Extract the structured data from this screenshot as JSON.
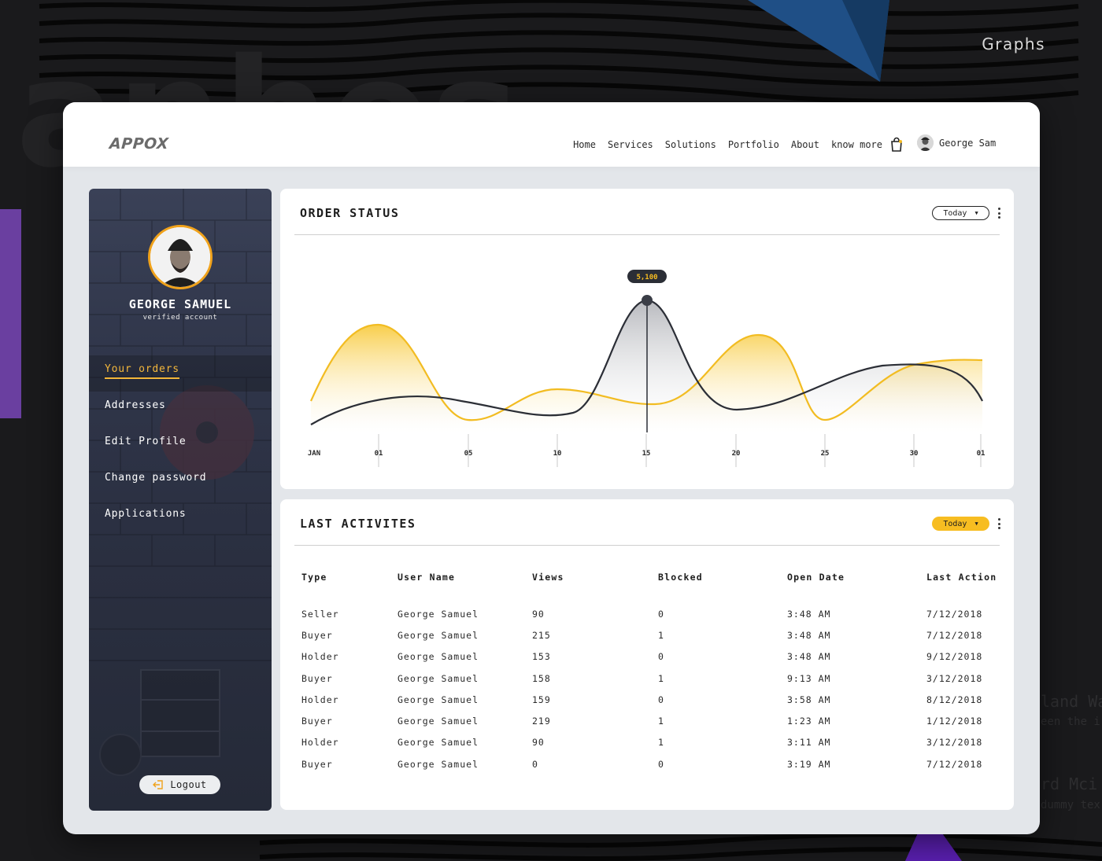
{
  "backdrop": {
    "label": "Graphs",
    "ghost_line_1": "land Wa",
    "ghost_line_2": "een the i",
    "ghost_line_3": "rd Mci",
    "ghost_line_4": "dummy tex"
  },
  "header": {
    "logo": "APPOX",
    "nav": [
      "Home",
      "Services",
      "Solutions",
      "Portfolio",
      "About",
      "know more"
    ],
    "user_name": "George Sam"
  },
  "sidebar": {
    "name": "GEORGE SAMUEL",
    "subtitle": "verified account",
    "items": [
      {
        "label": "Your orders",
        "active": true
      },
      {
        "label": "Addresses",
        "active": false
      },
      {
        "label": "Edit Profile",
        "active": false
      },
      {
        "label": "Change password",
        "active": false
      },
      {
        "label": "Applications",
        "active": false
      }
    ],
    "logout_label": "Logout"
  },
  "order_status": {
    "title": "ORDER STATUS",
    "filter_label": "Today",
    "tooltip_value": "5,100"
  },
  "chart_data": {
    "type": "area",
    "title": "ORDER STATUS",
    "x_ticks": [
      "JAN",
      "01",
      "05",
      "10",
      "15",
      "20",
      "25",
      "30",
      "01"
    ],
    "highlight": {
      "x": "15",
      "label": "5,100"
    },
    "series": [
      {
        "color": "#f2bc22",
        "fill": "yellow-gradient"
      },
      {
        "color": "#2b2e36",
        "fill": "gray-gradient"
      }
    ],
    "grid": "vertical"
  },
  "last_activities": {
    "title": "LAST ACTIVITES",
    "filter_label": "Today",
    "columns": [
      "Type",
      "User Name",
      "Views",
      "Blocked",
      "Open Date",
      "Last Action"
    ],
    "rows": [
      [
        "Seller",
        "George Samuel",
        "90",
        "0",
        "3:48 AM",
        "7/12/2018"
      ],
      [
        "Buyer",
        "George Samuel",
        "215",
        "1",
        "3:48 AM",
        "7/12/2018"
      ],
      [
        "Holder",
        "George Samuel",
        "153",
        "0",
        "3:48 AM",
        "9/12/2018"
      ],
      [
        "Buyer",
        "George Samuel",
        "158",
        "1",
        "9:13 AM",
        "3/12/2018"
      ],
      [
        "Holder",
        "George Samuel",
        "159",
        "0",
        "3:58 AM",
        "8/12/2018"
      ],
      [
        "Buyer",
        "George Samuel",
        "219",
        "1",
        "1:23 AM",
        "1/12/2018"
      ],
      [
        "Holder",
        "George Samuel",
        "90",
        "1",
        "3:11 AM",
        "3/12/2018"
      ],
      [
        "Buyer",
        "George Samuel",
        "0",
        "0",
        "3:19 AM",
        "7/12/2018"
      ]
    ]
  },
  "colors": {
    "accent_yellow": "#f7bd21",
    "dark_line": "#2b2e36",
    "sidebar_bg": "#2f3549",
    "app_bg": "#e3e6ea"
  }
}
